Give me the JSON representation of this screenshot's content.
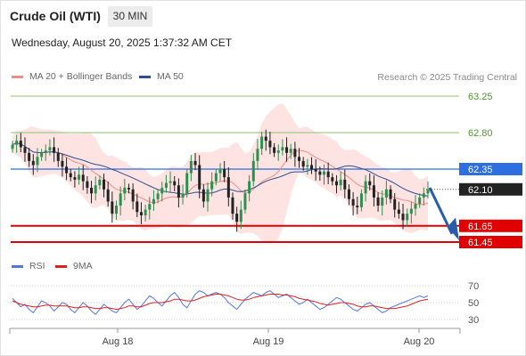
{
  "header": {
    "instrument": "Crude Oil (WTI)",
    "timeframe": "30 MIN",
    "datetime": "Wednesday, August 20, 2025 1:37:32 AM CET"
  },
  "legend_main": [
    {
      "label": "MA 20 + Bollinger Bands",
      "color": "#f08c84"
    },
    {
      "label": "MA 50",
      "color": "#2f4f8f"
    }
  ],
  "credit": "Research © 2025 Trading Central",
  "legend_rsi": [
    {
      "label": "RSI",
      "color": "#5577dd"
    },
    {
      "label": "9MA",
      "color": "#e02020"
    }
  ],
  "levels": {
    "green": [
      {
        "value": 63.25,
        "label": "63.25"
      },
      {
        "value": 62.8,
        "label": "62.80"
      }
    ],
    "pivot": {
      "value": 62.35,
      "label": "62.35",
      "color": "#2d6fe0"
    },
    "current": {
      "value": 62.1,
      "label": "62.10",
      "color": "#222222"
    },
    "support": [
      {
        "value": 61.65,
        "label": "61.65"
      },
      {
        "value": 61.45,
        "label": "61.45"
      }
    ],
    "support_color": "#e00000"
  },
  "x_axis_labels": [
    "Aug 18",
    "Aug 19",
    "Aug 20"
  ],
  "rsi_axis_labels": [
    "70",
    "50",
    "30"
  ],
  "chart_data": {
    "type": "candlestick",
    "y_axis": {
      "min": 61.4,
      "max": 63.35,
      "ticks": [
        63.25,
        62.8,
        62.35,
        62.1,
        61.65,
        61.45
      ]
    },
    "x_categories": [
      "Aug 18",
      "Aug 19",
      "Aug 20"
    ],
    "candles_close": [
      62.65,
      62.7,
      62.62,
      62.55,
      62.45,
      62.4,
      62.5,
      62.55,
      62.58,
      62.62,
      62.55,
      62.45,
      62.38,
      62.3,
      62.25,
      62.22,
      62.28,
      62.2,
      62.12,
      62.05,
      62.15,
      62.22,
      62.1,
      61.95,
      61.8,
      61.9,
      62.05,
      62.12,
      62.1,
      61.95,
      61.82,
      61.78,
      61.85,
      61.92,
      61.98,
      62.05,
      62.12,
      62.18,
      62.2,
      62.15,
      62.0,
      62.05,
      62.3,
      62.45,
      62.4,
      62.1,
      61.95,
      62.1,
      62.2,
      62.3,
      62.35,
      62.25,
      62.0,
      61.8,
      61.7,
      61.85,
      62.05,
      62.2,
      62.45,
      62.6,
      62.75,
      62.7,
      62.62,
      62.55,
      62.58,
      62.62,
      62.55,
      62.6,
      62.5,
      62.45,
      62.38,
      62.4,
      62.35,
      62.32,
      62.28,
      62.32,
      62.25,
      62.2,
      62.15,
      62.22,
      62.1,
      61.98,
      61.9,
      61.88,
      62.05,
      62.2,
      62.15,
      62.0,
      61.9,
      62.0,
      62.1,
      61.98,
      61.85,
      61.8,
      61.72,
      61.8,
      61.86,
      61.92,
      62.0,
      62.05,
      62.1
    ],
    "bands": {
      "ma20": "salmon line",
      "bollinger": "shaded area",
      "ma50": "navy line"
    },
    "rsi": {
      "range": [
        0,
        100
      ],
      "ticks": [
        70,
        50,
        30
      ],
      "rsi_series": [
        55,
        50,
        45,
        48,
        42,
        38,
        45,
        52,
        50,
        46,
        40,
        45,
        50,
        48,
        42,
        38,
        44,
        50,
        46,
        40,
        36,
        42,
        48,
        44,
        40,
        38,
        44,
        50,
        54,
        48,
        42,
        46,
        52,
        58,
        55,
        50,
        46,
        52,
        58,
        62,
        56,
        48,
        44,
        52,
        60,
        64,
        62,
        58,
        60,
        62,
        60,
        56,
        50,
        46,
        42,
        48,
        54,
        58,
        62,
        60,
        58,
        62,
        64,
        60,
        56,
        58,
        60,
        56,
        52,
        48,
        50,
        54,
        50,
        46,
        42,
        44,
        48,
        52,
        56,
        54,
        50,
        46,
        42,
        40,
        44,
        48,
        50,
        46,
        42,
        38,
        40,
        44,
        46,
        48,
        50,
        52,
        54,
        56,
        58,
        56,
        58
      ],
      "ma9_series": [
        52,
        50,
        48,
        47,
        46,
        45,
        45,
        46,
        47,
        47,
        46,
        46,
        46,
        46,
        45,
        44,
        44,
        45,
        45,
        44,
        43,
        43,
        44,
        44,
        43,
        42,
        43,
        44,
        46,
        46,
        45,
        45,
        47,
        49,
        50,
        50,
        50,
        51,
        52,
        54,
        54,
        53,
        52,
        52,
        53,
        55,
        57,
        58,
        59,
        60,
        60,
        59,
        58,
        56,
        54,
        53,
        53,
        54,
        56,
        57,
        58,
        59,
        60,
        60,
        60,
        59,
        59,
        58,
        57,
        55,
        54,
        53,
        52,
        51,
        49,
        48,
        47,
        48,
        49,
        50,
        50,
        49,
        48,
        46,
        45,
        45,
        46,
        46,
        45,
        44,
        43,
        43,
        43,
        44,
        45,
        46,
        48,
        50,
        52,
        53,
        54
      ]
    }
  }
}
